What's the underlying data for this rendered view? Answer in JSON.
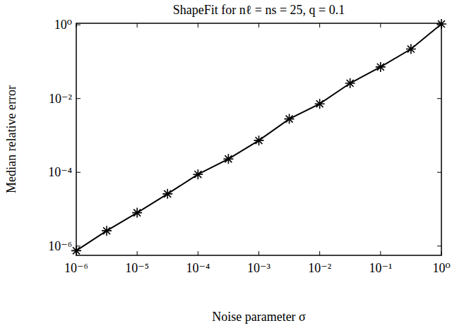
{
  "chart_data": {
    "type": "line",
    "title": "ShapeFit for nℓ = ns = 25, q = 0.1",
    "x_label": "Noise parameter σ",
    "y_label": "Median relative error",
    "log": true,
    "grid": false,
    "x": [
      1e-06,
      3.16e-06,
      1e-05,
      3.16e-05,
      0.0001,
      0.000316,
      0.001,
      0.00316,
      0.01,
      0.0316,
      0.1,
      0.316,
      1
    ],
    "series": [
      {
        "name": "ShapeFit",
        "color": "#000000",
        "marker": "asterisk",
        "line_style": "solid",
        "values": [
          7.5e-07,
          2.6e-06,
          8e-06,
          2.6e-05,
          8.8e-05,
          0.00023,
          0.00073,
          0.0028,
          0.0072,
          0.026,
          0.072,
          0.22,
          1.05
        ]
      }
    ],
    "xlim": [
      1e-06,
      1
    ],
    "ylim": [
      5.6e-07,
      1.1
    ],
    "xticks": [
      {
        "value": 1e-06,
        "label": "10⁻⁶"
      },
      {
        "value": 1e-05,
        "label": "10⁻⁵"
      },
      {
        "value": 0.0001,
        "label": "10⁻⁴"
      },
      {
        "value": 0.001,
        "label": "10⁻³"
      },
      {
        "value": 0.01,
        "label": "10⁻²"
      },
      {
        "value": 0.1,
        "label": "10⁻¹"
      },
      {
        "value": 1,
        "label": "10⁰"
      }
    ],
    "yticks": [
      {
        "value": 1e-06,
        "label": "10⁻⁶"
      },
      {
        "value": 0.0001,
        "label": "10⁻⁴"
      },
      {
        "value": 0.01,
        "label": "10⁻²"
      },
      {
        "value": 1,
        "label": "10⁰"
      }
    ]
  }
}
